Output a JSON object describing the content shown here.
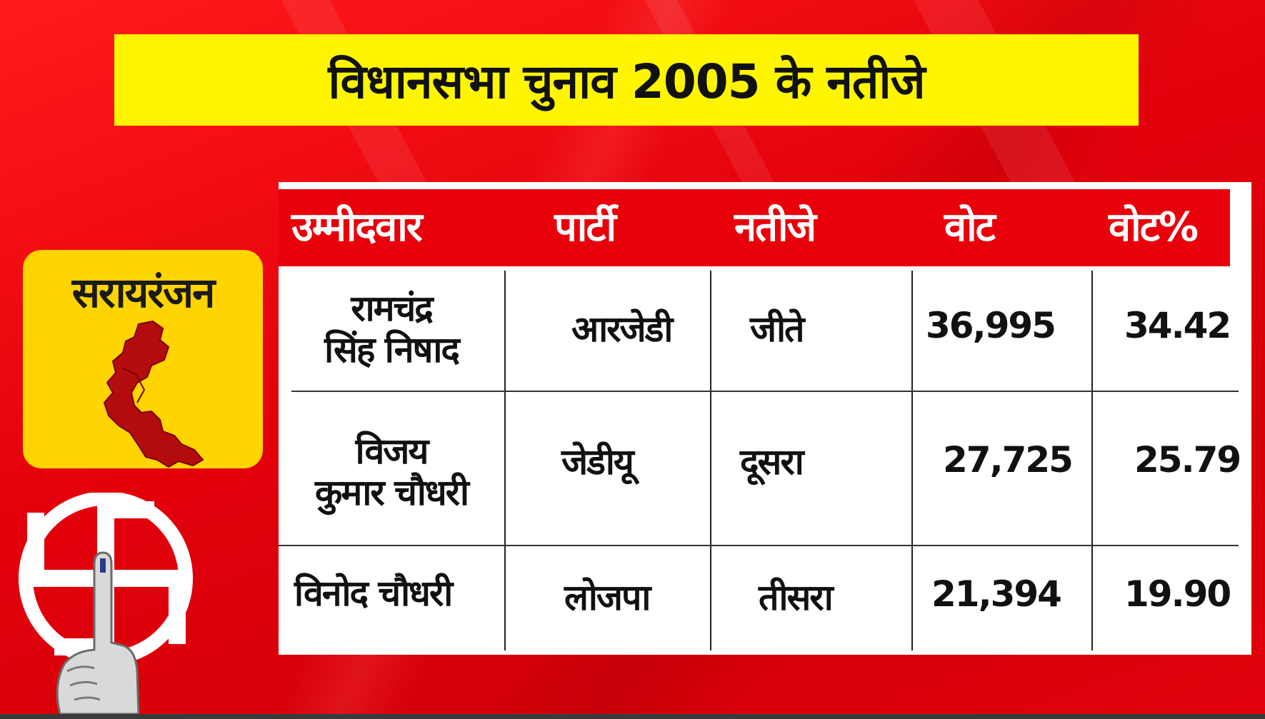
{
  "title": "विधानसभा चुनाव 2005 के नतीजे",
  "constituency": "सरायरंजन",
  "table": {
    "headers": [
      "उम्मीदवार",
      "पार्टी",
      "नतीजे",
      "वोट",
      "वोट%"
    ],
    "rows": [
      {
        "candidate_line1": "रामचंद्र",
        "candidate_line2": "सिंह निषाद",
        "party": "आरजेडी",
        "result": "जीते",
        "votes": "36,995",
        "vote_pct": "34.42"
      },
      {
        "candidate_line1": "विजय",
        "candidate_line2": "कुमार चौधरी",
        "party": "जेडीयू",
        "result": "दूसरा",
        "votes": "27,725",
        "vote_pct": "25.79"
      },
      {
        "candidate_line1": "विनोद चौधरी",
        "candidate_line2": "",
        "party": "लोजपा",
        "result": "तीसरा",
        "votes": "21,394",
        "vote_pct": "19.90"
      }
    ]
  },
  "colors": {
    "background": "#e8000a",
    "title_bar": "#fff500",
    "card": "#ffd400",
    "map": "#b40c0c"
  },
  "icons": {
    "map": "constituency-map-icon",
    "symbol": "election-symbol-icon"
  }
}
